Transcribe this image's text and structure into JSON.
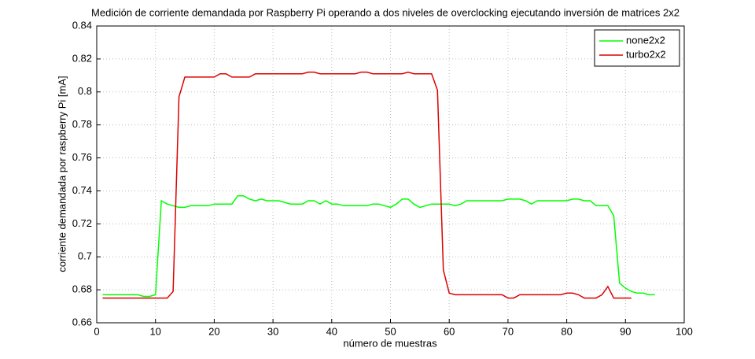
{
  "chart_data": {
    "type": "line",
    "title": "Medición de corriente demandada por Raspberry Pi operando a dos niveles de overclocking ejecutando inversión de matrices 2x2",
    "x_label": "número de muestras",
    "y_label": "corriente demandada por raspberry Pi [mA]",
    "x": [
      1,
      2,
      3,
      4,
      5,
      6,
      7,
      8,
      9,
      10,
      11,
      12,
      13,
      14,
      15,
      16,
      17,
      18,
      19,
      20,
      21,
      22,
      23,
      24,
      25,
      26,
      27,
      28,
      29,
      30,
      31,
      32,
      33,
      34,
      35,
      36,
      37,
      38,
      39,
      40,
      41,
      42,
      43,
      44,
      45,
      46,
      47,
      48,
      49,
      50,
      51,
      52,
      53,
      54,
      55,
      56,
      57,
      58,
      59,
      60,
      61,
      62,
      63,
      64,
      65,
      66,
      67,
      68,
      69,
      70,
      71,
      72,
      73,
      74,
      75,
      76,
      77,
      78,
      79,
      80,
      81,
      82,
      83,
      84,
      85,
      86,
      87,
      88,
      89,
      90,
      91,
      92,
      93,
      94,
      95
    ],
    "series": [
      {
        "name": "none2x2",
        "color": "#00ff00",
        "values": [
          0.677,
          0.677,
          0.677,
          0.677,
          0.677,
          0.677,
          0.677,
          0.676,
          0.676,
          0.677,
          0.734,
          0.732,
          0.731,
          0.73,
          0.73,
          0.731,
          0.731,
          0.731,
          0.731,
          0.732,
          0.732,
          0.732,
          0.732,
          0.737,
          0.737,
          0.735,
          0.734,
          0.735,
          0.734,
          0.734,
          0.734,
          0.733,
          0.732,
          0.732,
          0.732,
          0.734,
          0.734,
          0.732,
          0.734,
          0.732,
          0.732,
          0.731,
          0.731,
          0.731,
          0.731,
          0.731,
          0.732,
          0.732,
          0.731,
          0.73,
          0.732,
          0.735,
          0.735,
          0.732,
          0.73,
          0.731,
          0.732,
          0.732,
          0.732,
          0.732,
          0.731,
          0.732,
          0.734,
          0.734,
          0.734,
          0.734,
          0.734,
          0.734,
          0.734,
          0.735,
          0.735,
          0.735,
          0.734,
          0.732,
          0.734,
          0.734,
          0.734,
          0.734,
          0.734,
          0.734,
          0.735,
          0.735,
          0.734,
          0.734,
          0.731,
          0.731,
          0.731,
          0.725,
          0.684,
          0.681,
          0.679,
          0.678,
          0.678,
          0.677,
          0.677
        ]
      },
      {
        "name": "turbo2x2",
        "color": "#dd0000",
        "values": [
          0.675,
          0.675,
          0.675,
          0.675,
          0.675,
          0.675,
          0.675,
          0.675,
          0.675,
          0.675,
          0.675,
          0.675,
          0.679,
          0.797,
          0.809,
          0.809,
          0.809,
          0.809,
          0.809,
          0.809,
          0.811,
          0.811,
          0.809,
          0.809,
          0.809,
          0.809,
          0.811,
          0.811,
          0.811,
          0.811,
          0.811,
          0.811,
          0.811,
          0.811,
          0.811,
          0.812,
          0.812,
          0.811,
          0.811,
          0.811,
          0.811,
          0.811,
          0.811,
          0.811,
          0.812,
          0.812,
          0.811,
          0.811,
          0.811,
          0.811,
          0.811,
          0.811,
          0.812,
          0.811,
          0.811,
          0.811,
          0.811,
          0.801,
          0.692,
          0.678,
          0.677,
          0.677,
          0.677,
          0.677,
          0.677,
          0.677,
          0.677,
          0.677,
          0.677,
          0.675,
          0.675,
          0.677,
          0.677,
          0.677,
          0.677,
          0.677,
          0.677,
          0.677,
          0.677,
          0.678,
          0.678,
          0.677,
          0.675,
          0.675,
          0.675,
          0.677,
          0.682,
          0.675,
          0.675,
          0.675,
          0.675,
          null,
          null,
          null,
          null
        ]
      }
    ],
    "xlim": [
      0,
      100
    ],
    "xticks": [
      0,
      10,
      20,
      30,
      40,
      50,
      60,
      70,
      80,
      90,
      100
    ],
    "ylim": [
      0.66,
      0.84
    ],
    "yticks": [
      0.66,
      0.68,
      0.7,
      0.72,
      0.74,
      0.76,
      0.78,
      0.8,
      0.82,
      0.84
    ],
    "grid": true,
    "legend": "top-right"
  }
}
